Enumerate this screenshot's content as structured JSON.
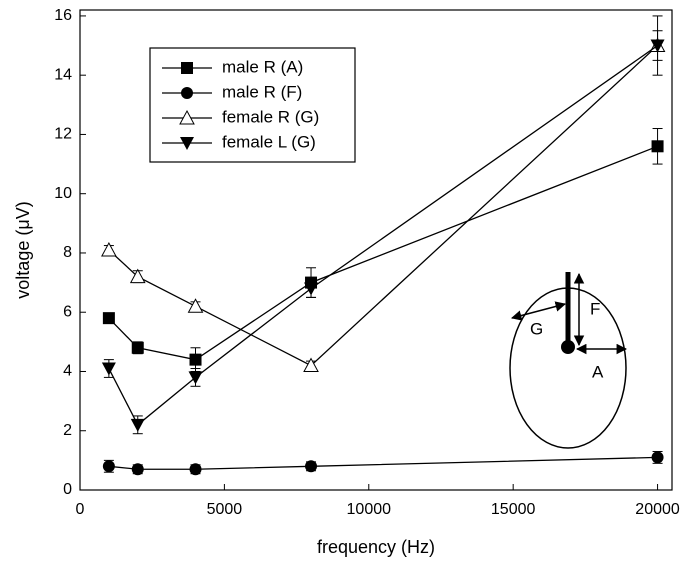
{
  "chart_data": {
    "type": "line",
    "x_label": "frequency (Hz)",
    "y_label": "voltage (μV)",
    "x": [
      1000,
      2000,
      4000,
      8000,
      20000
    ],
    "series": [
      {
        "name": "male R (A)",
        "color": "#000000",
        "marker": "square",
        "values": [
          5.8,
          4.8,
          4.4,
          7.0,
          11.6
        ],
        "errors": [
          0.15,
          0.2,
          0.4,
          0.5,
          0.6
        ]
      },
      {
        "name": "male R (F)",
        "color": "#000000",
        "marker": "circle",
        "values": [
          0.8,
          0.7,
          0.7,
          0.8,
          1.1
        ],
        "errors": [
          0.2,
          0.15,
          0.15,
          0.15,
          0.2
        ]
      },
      {
        "name": "female R (G)",
        "color": "#000000",
        "marker": "triangle-up-open",
        "values": [
          8.1,
          7.2,
          6.2,
          4.2,
          15.0
        ],
        "errors": [
          0.15,
          0.2,
          0.15,
          0.15,
          0.5
        ]
      },
      {
        "name": "female L (G)",
        "color": "#000000",
        "marker": "triangle-down",
        "values": [
          4.1,
          2.2,
          3.8,
          6.8,
          15.0
        ],
        "errors": [
          0.3,
          0.3,
          0.3,
          0.3,
          1.0
        ]
      }
    ],
    "xlim": [
      0,
      20500
    ],
    "ylim": [
      0,
      16.2
    ],
    "xticks": [
      0,
      5000,
      10000,
      15000,
      20000
    ],
    "yticks": [
      0,
      2,
      4,
      6,
      8,
      10,
      12,
      14,
      16
    ],
    "legend": "upper left",
    "inset_labels": [
      "F",
      "G",
      "A"
    ]
  }
}
